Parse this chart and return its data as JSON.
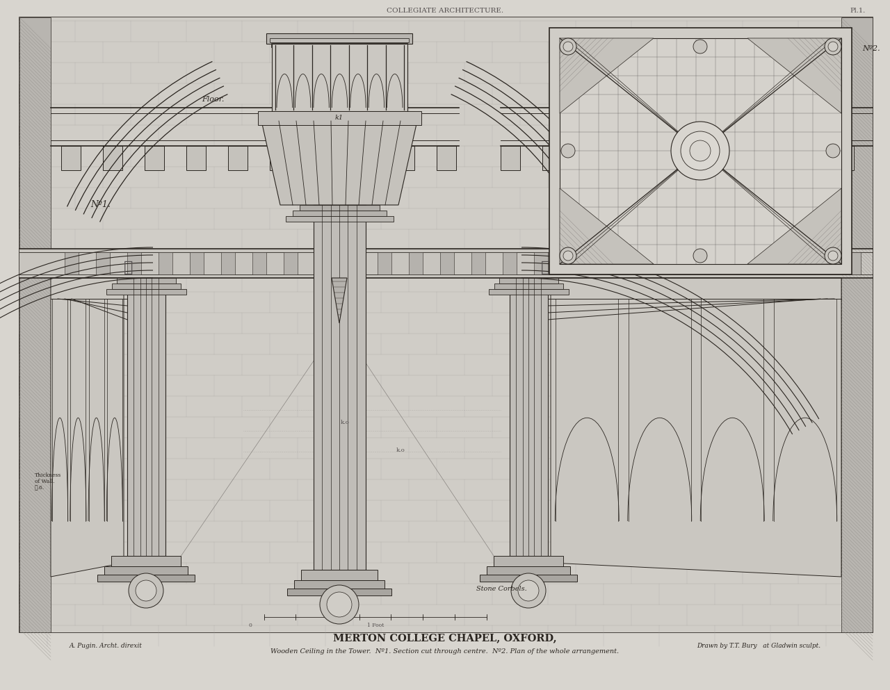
{
  "title_top": "COLLEGIATE ARCHITECTURE.",
  "plate_num": "Pl.1.",
  "main_title": "MERTON COLLEGE CHAPEL, OXFORD,",
  "subtitle": "Wooden Ceiling in the Tower.  Nº1. Section cut through centre.  Nº2. Plan of the whole arrangement.",
  "attribution_left": "A. Pugin. Archt. direxit",
  "attribution_right": "Drawn by T.T. Bury   at Gladwin sculpt.",
  "no1_label": "Nº1.",
  "no2_label": "Nº2.",
  "floor_label": "Floor.",
  "stone_corbels_label": "Stone Corbels.",
  "thickness_label": "Thickness\nof Wall.\nℓ.6.",
  "background_color": "#cac6bf",
  "paper_color": "#d8d5cf",
  "border_color": "#3a3530",
  "line_color": "#2a2520",
  "mid_line_color": "#555050",
  "light_line_color": "#888480",
  "fig_width": 12.8,
  "fig_height": 9.93
}
